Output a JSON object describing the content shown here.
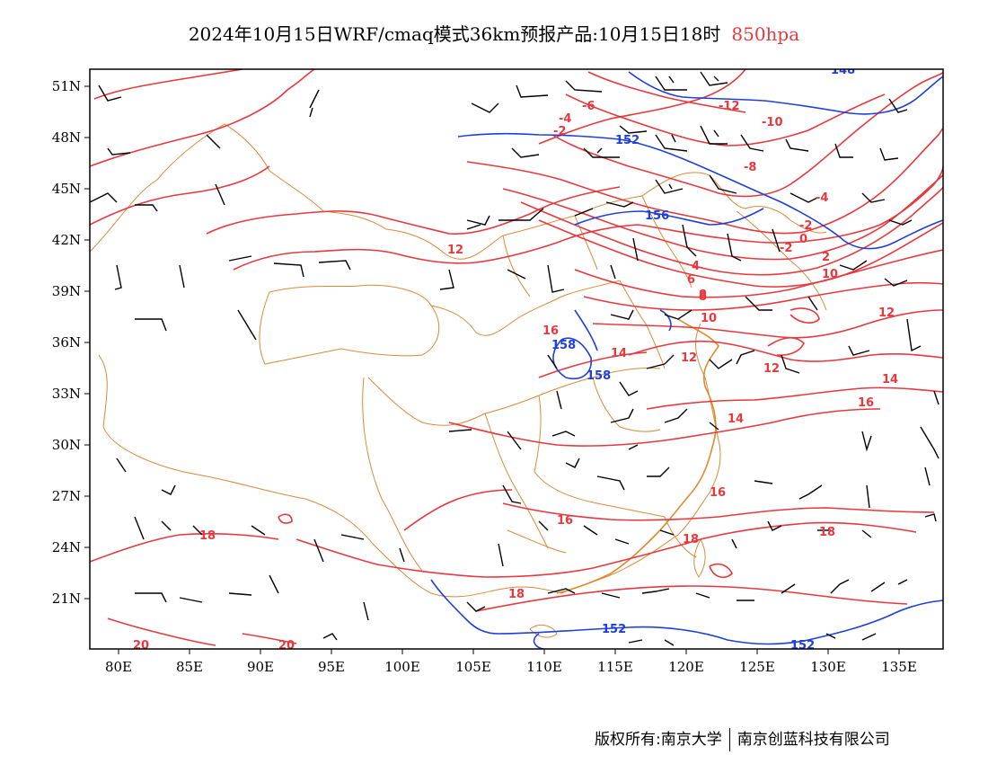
{
  "title": {
    "main": "2024年10月15日WRF/cmaq模式36km预报产品:10月15日18时",
    "level": "850hpa"
  },
  "axes": {
    "lat_labels": [
      "51N",
      "48N",
      "45N",
      "42N",
      "39N",
      "36N",
      "33N",
      "30N",
      "27N",
      "24N",
      "21N"
    ],
    "lon_labels": [
      "80E",
      "85E",
      "90E",
      "95E",
      "100E",
      "105E",
      "110E",
      "115E",
      "120E",
      "125E",
      "130E",
      "135E"
    ]
  },
  "colors": {
    "temperature": "#e8383d",
    "geopotential": "#1f3fdc",
    "border": "#d98a3a",
    "wind": "#000000"
  },
  "contour_labels": {
    "temperature": [
      "-6",
      "-4",
      "-2",
      "-12",
      "-10",
      "-8",
      "-4",
      "-2",
      "0",
      "2",
      "-2",
      "8",
      "10",
      "12",
      "4",
      "6",
      "8",
      "10",
      "16",
      "14",
      "12",
      "12",
      "12",
      "14",
      "14",
      "16",
      "16",
      "16",
      "18",
      "18",
      "18",
      "18",
      "20",
      "20"
    ],
    "geopotential": [
      "152",
      "156",
      "158",
      "158",
      "152",
      "152",
      "148"
    ]
  },
  "footer": {
    "left": "版权所有:南京大学",
    "right": "南京创蓝科技有限公司"
  }
}
